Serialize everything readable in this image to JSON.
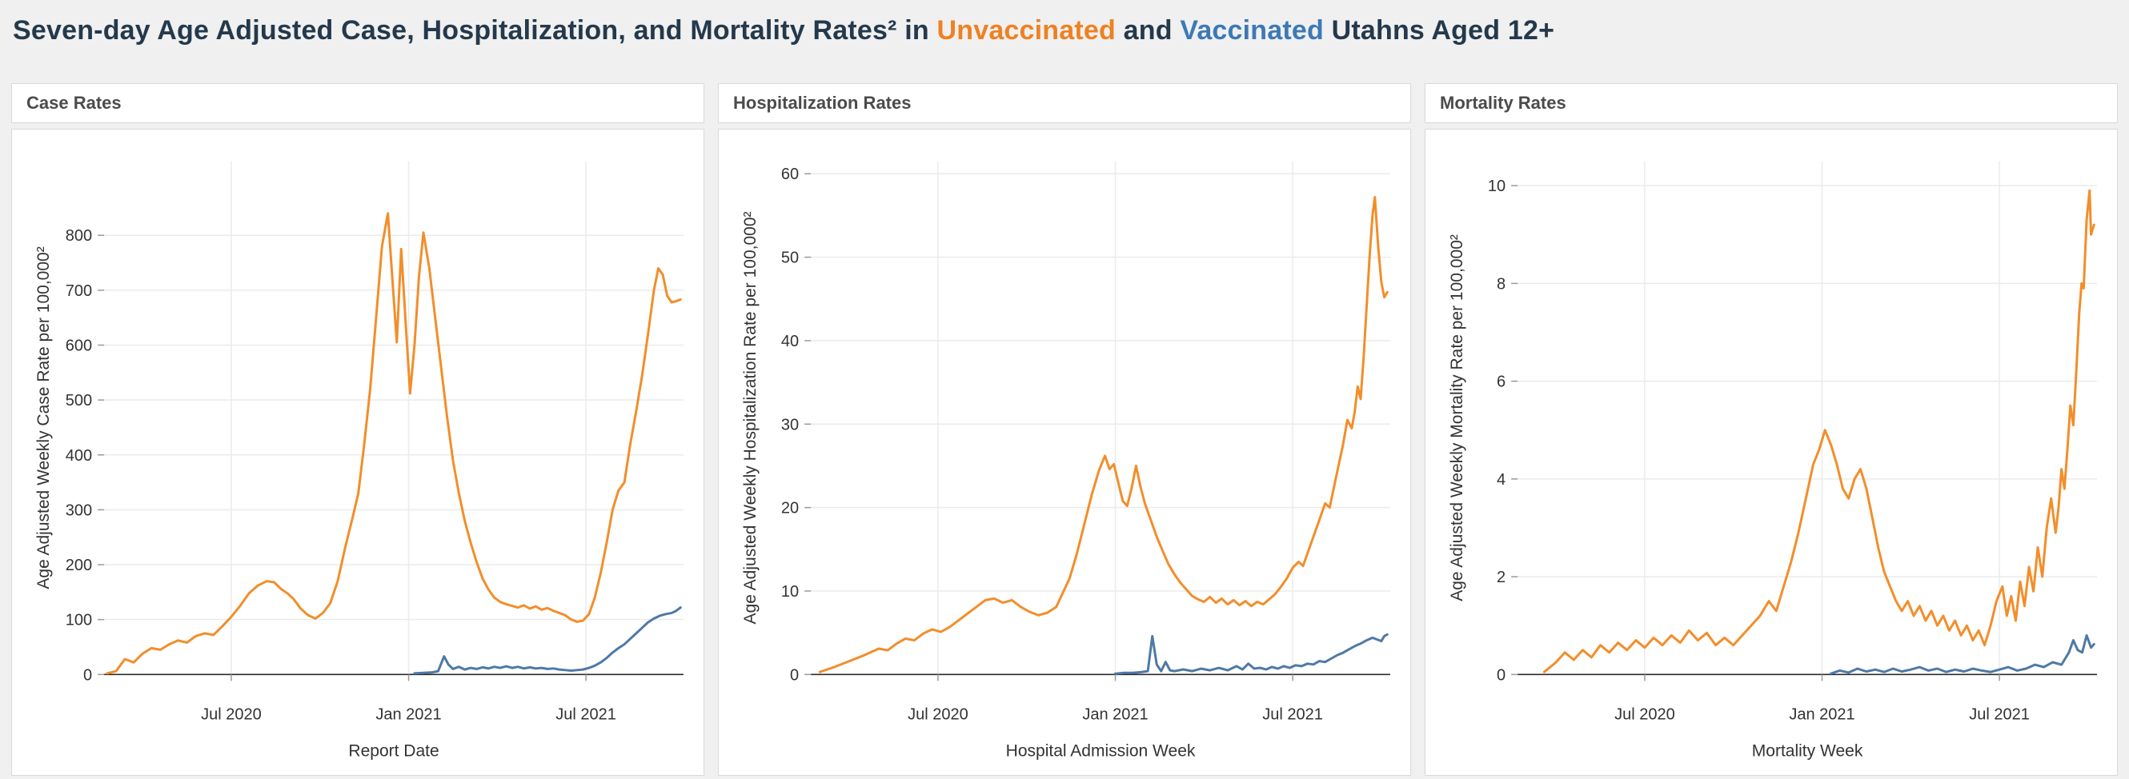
{
  "title": {
    "prefix": "Seven-day Age Adjusted Case, Hospitalization, and Mortality Rates² in ",
    "unvaccinated": "Unvaccinated",
    "and": " and ",
    "vaccinated": "Vaccinated",
    "suffix": " Utahns Aged 12+"
  },
  "colors": {
    "title_dark": "#24394b",
    "title_orange": "#ef8122",
    "title_blue": "#3c79b6",
    "unvaccinated": "#f28e2b",
    "vaccinated": "#4e79a7",
    "gridline": "#ebebeb",
    "axis_line": "#2b2b2b",
    "tick_mark": "#9a9a9a"
  },
  "chart_data": [
    {
      "type": "line",
      "panel_title": "Case Rates",
      "xlabel": "Report Date",
      "ylabel": "Age Adjusted Weekly Case Rate per 100,000²",
      "xlim": [
        1.7,
        21.3
      ],
      "ylim": [
        0,
        935
      ],
      "yticks": [
        0,
        100,
        200,
        300,
        400,
        500,
        600,
        700,
        800
      ],
      "xticks": [
        {
          "v": 6,
          "label": "Jul 2020"
        },
        {
          "v": 12,
          "label": "Jan 2021"
        },
        {
          "v": 18,
          "label": "Jul 2021"
        }
      ],
      "x_unit": "months since Jan 2020",
      "series": [
        {
          "name": "Unvaccinated",
          "color": "unvaccinated",
          "x": [
            1.8,
            2.1,
            2.4,
            2.7,
            3.0,
            3.3,
            3.6,
            3.9,
            4.2,
            4.5,
            4.8,
            5.1,
            5.4,
            5.7,
            6.0,
            6.3,
            6.6,
            6.9,
            7.2,
            7.45,
            7.7,
            7.9,
            8.1,
            8.35,
            8.6,
            8.85,
            9.1,
            9.35,
            9.6,
            9.85,
            10.1,
            10.3,
            10.5,
            10.7,
            10.9,
            11.1,
            11.3,
            11.45,
            11.6,
            11.75,
            11.9,
            12.05,
            12.2,
            12.35,
            12.5,
            12.7,
            12.9,
            13.1,
            13.3,
            13.5,
            13.7,
            13.9,
            14.1,
            14.3,
            14.5,
            14.7,
            14.9,
            15.1,
            15.3,
            15.5,
            15.7,
            15.9,
            16.1,
            16.3,
            16.5,
            16.7,
            16.9,
            17.1,
            17.3,
            17.5,
            17.7,
            17.9,
            18.1,
            18.3,
            18.5,
            18.7,
            18.9,
            19.1,
            19.3,
            19.5,
            19.7,
            19.9,
            20.1,
            20.3,
            20.45,
            20.6,
            20.75,
            20.9,
            21.05,
            21.2
          ],
          "y": [
            2,
            6,
            28,
            22,
            38,
            48,
            45,
            55,
            62,
            58,
            70,
            75,
            72,
            88,
            105,
            125,
            148,
            162,
            170,
            168,
            155,
            148,
            138,
            120,
            108,
            102,
            112,
            130,
            170,
            230,
            285,
            330,
            420,
            520,
            650,
            780,
            840,
            720,
            605,
            775,
            640,
            512,
            600,
            725,
            805,
            740,
            650,
            560,
            470,
            390,
            330,
            280,
            240,
            205,
            175,
            155,
            140,
            132,
            128,
            125,
            122,
            126,
            120,
            124,
            118,
            121,
            116,
            112,
            108,
            100,
            96,
            98,
            110,
            140,
            185,
            240,
            300,
            335,
            350,
            420,
            480,
            545,
            620,
            700,
            740,
            728,
            690,
            678,
            680,
            683
          ]
        },
        {
          "name": "Vaccinated",
          "color": "vaccinated",
          "x": [
            12.2,
            12.5,
            12.8,
            13.0,
            13.2,
            13.35,
            13.5,
            13.7,
            13.9,
            14.1,
            14.3,
            14.5,
            14.7,
            14.9,
            15.1,
            15.3,
            15.5,
            15.7,
            15.9,
            16.1,
            16.3,
            16.5,
            16.7,
            16.9,
            17.1,
            17.3,
            17.5,
            17.7,
            17.9,
            18.1,
            18.3,
            18.5,
            18.7,
            18.9,
            19.1,
            19.3,
            19.5,
            19.7,
            19.9,
            20.1,
            20.3,
            20.5,
            20.7,
            20.9,
            21.05,
            21.2
          ],
          "y": [
            2,
            3,
            4,
            6,
            33,
            18,
            10,
            14,
            9,
            12,
            10,
            13,
            11,
            14,
            12,
            15,
            12,
            14,
            11,
            13,
            11,
            12,
            10,
            11,
            9,
            8,
            7,
            8,
            9,
            12,
            16,
            22,
            30,
            40,
            48,
            55,
            65,
            75,
            85,
            95,
            102,
            107,
            110,
            112,
            116,
            122
          ]
        }
      ]
    },
    {
      "type": "line",
      "panel_title": "Hospitalization Rates",
      "xlabel": "Hospital Admission Week",
      "ylabel": "Age Adjusted Weekly Hospitalization Rate per 100,000²",
      "xlim": [
        1.7,
        21.3
      ],
      "ylim": [
        0,
        61.5
      ],
      "yticks": [
        0,
        10,
        20,
        30,
        40,
        50,
        60
      ],
      "xticks": [
        {
          "v": 6,
          "label": "Jul 2020"
        },
        {
          "v": 12,
          "label": "Jan 2021"
        },
        {
          "v": 18,
          "label": "Jul 2021"
        }
      ],
      "x_unit": "months since Jan 2020",
      "series": [
        {
          "name": "Unvaccinated",
          "color": "unvaccinated",
          "x": [
            2.0,
            2.5,
            3.0,
            3.5,
            4.0,
            4.3,
            4.6,
            4.9,
            5.2,
            5.5,
            5.8,
            6.1,
            6.4,
            6.7,
            7.0,
            7.3,
            7.6,
            7.9,
            8.2,
            8.5,
            8.8,
            9.1,
            9.4,
            9.7,
            10.0,
            10.2,
            10.45,
            10.7,
            10.95,
            11.2,
            11.45,
            11.65,
            11.8,
            11.95,
            12.1,
            12.25,
            12.4,
            12.55,
            12.7,
            12.85,
            13.0,
            13.2,
            13.4,
            13.6,
            13.8,
            14.0,
            14.2,
            14.4,
            14.6,
            14.8,
            15.0,
            15.2,
            15.4,
            15.6,
            15.8,
            16.0,
            16.2,
            16.4,
            16.6,
            16.8,
            17.0,
            17.2,
            17.4,
            17.6,
            17.8,
            18.0,
            18.2,
            18.35,
            18.5,
            18.7,
            18.9,
            19.1,
            19.25,
            19.4,
            19.55,
            19.7,
            19.85,
            20.0,
            20.1,
            20.2,
            20.3,
            20.4,
            20.5,
            20.6,
            20.7,
            20.78,
            20.9,
            21.0,
            21.1,
            21.2
          ],
          "y": [
            0.3,
            0.9,
            1.6,
            2.3,
            3.1,
            2.9,
            3.7,
            4.3,
            4.1,
            4.9,
            5.4,
            5.1,
            5.7,
            6.5,
            7.3,
            8.1,
            8.9,
            9.1,
            8.6,
            8.9,
            8.1,
            7.5,
            7.1,
            7.4,
            8.1,
            9.6,
            11.5,
            14.5,
            18.0,
            21.5,
            24.5,
            26.2,
            24.6,
            25.2,
            23.0,
            20.8,
            20.2,
            22.3,
            25.0,
            22.5,
            20.5,
            18.5,
            16.5,
            14.8,
            13.2,
            12.0,
            11.0,
            10.2,
            9.4,
            9.0,
            8.7,
            9.3,
            8.6,
            9.1,
            8.4,
            8.9,
            8.3,
            8.8,
            8.2,
            8.7,
            8.4,
            9.0,
            9.6,
            10.5,
            11.5,
            12.8,
            13.5,
            13.0,
            14.5,
            16.5,
            18.5,
            20.5,
            20.0,
            22.5,
            25.0,
            27.5,
            30.5,
            29.5,
            31.5,
            34.5,
            33.0,
            38.0,
            44.0,
            50.0,
            55.0,
            57.2,
            51.0,
            47.0,
            45.2,
            45.8
          ]
        },
        {
          "name": "Vaccinated",
          "color": "vaccinated",
          "x": [
            12.0,
            12.3,
            12.6,
            12.9,
            13.1,
            13.25,
            13.4,
            13.55,
            13.7,
            13.85,
            14.0,
            14.3,
            14.6,
            14.9,
            15.2,
            15.5,
            15.8,
            16.1,
            16.3,
            16.5,
            16.7,
            16.9,
            17.1,
            17.3,
            17.5,
            17.7,
            17.9,
            18.1,
            18.3,
            18.5,
            18.7,
            18.9,
            19.1,
            19.3,
            19.5,
            19.7,
            19.9,
            20.1,
            20.3,
            20.5,
            20.7,
            20.85,
            21.0,
            21.1,
            21.2
          ],
          "y": [
            0.1,
            0.2,
            0.2,
            0.3,
            0.4,
            4.6,
            1.2,
            0.4,
            1.5,
            0.5,
            0.4,
            0.6,
            0.4,
            0.7,
            0.5,
            0.8,
            0.5,
            1.0,
            0.6,
            1.3,
            0.7,
            0.8,
            0.6,
            0.9,
            0.7,
            1.0,
            0.8,
            1.1,
            1.0,
            1.3,
            1.2,
            1.6,
            1.5,
            1.9,
            2.3,
            2.6,
            3.0,
            3.4,
            3.7,
            4.1,
            4.4,
            4.2,
            4.0,
            4.6,
            4.8
          ]
        }
      ]
    },
    {
      "type": "line",
      "panel_title": "Mortality Rates",
      "xlabel": "Mortality Week",
      "ylabel": "Age Adjusted Weekly Mortality Rate per 100,000²",
      "xlim": [
        1.7,
        21.3
      ],
      "ylim": [
        0,
        10.5
      ],
      "yticks": [
        0,
        2,
        4,
        6,
        8,
        10
      ],
      "xticks": [
        {
          "v": 6,
          "label": "Jul 2020"
        },
        {
          "v": 12,
          "label": "Jan 2021"
        },
        {
          "v": 18,
          "label": "Jul 2021"
        }
      ],
      "x_unit": "months since Jan 2020",
      "series": [
        {
          "name": "Unvaccinated",
          "color": "unvaccinated",
          "x": [
            2.6,
            3.0,
            3.3,
            3.6,
            3.9,
            4.2,
            4.5,
            4.8,
            5.1,
            5.4,
            5.7,
            6.0,
            6.3,
            6.6,
            6.9,
            7.2,
            7.5,
            7.8,
            8.1,
            8.4,
            8.7,
            9.0,
            9.3,
            9.6,
            9.9,
            10.2,
            10.45,
            10.7,
            10.95,
            11.2,
            11.45,
            11.7,
            11.9,
            12.1,
            12.3,
            12.5,
            12.7,
            12.9,
            13.1,
            13.3,
            13.5,
            13.7,
            13.9,
            14.1,
            14.3,
            14.5,
            14.7,
            14.9,
            15.1,
            15.3,
            15.5,
            15.7,
            15.9,
            16.1,
            16.3,
            16.5,
            16.7,
            16.9,
            17.1,
            17.3,
            17.5,
            17.7,
            17.9,
            18.1,
            18.25,
            18.4,
            18.55,
            18.7,
            18.85,
            19.0,
            19.15,
            19.3,
            19.45,
            19.6,
            19.75,
            19.9,
            20.0,
            20.1,
            20.2,
            20.3,
            20.4,
            20.5,
            20.6,
            20.7,
            20.78,
            20.85,
            20.95,
            21.05,
            21.1,
            21.2
          ],
          "y": [
            0.05,
            0.25,
            0.45,
            0.3,
            0.5,
            0.35,
            0.6,
            0.45,
            0.65,
            0.5,
            0.7,
            0.55,
            0.75,
            0.6,
            0.8,
            0.65,
            0.9,
            0.7,
            0.85,
            0.6,
            0.75,
            0.6,
            0.8,
            1.0,
            1.2,
            1.5,
            1.3,
            1.8,
            2.3,
            2.9,
            3.6,
            4.3,
            4.6,
            5.0,
            4.7,
            4.3,
            3.8,
            3.6,
            4.0,
            4.2,
            3.8,
            3.2,
            2.6,
            2.1,
            1.8,
            1.5,
            1.3,
            1.5,
            1.2,
            1.4,
            1.1,
            1.3,
            1.0,
            1.2,
            0.9,
            1.1,
            0.8,
            1.0,
            0.7,
            0.9,
            0.6,
            1.0,
            1.5,
            1.8,
            1.2,
            1.6,
            1.1,
            1.9,
            1.4,
            2.2,
            1.7,
            2.6,
            2.0,
            3.0,
            3.6,
            2.9,
            3.4,
            4.2,
            3.8,
            4.6,
            5.5,
            5.1,
            6.2,
            7.4,
            8.0,
            7.9,
            9.3,
            9.9,
            9.0,
            9.2
          ]
        },
        {
          "name": "Vaccinated",
          "color": "vaccinated",
          "x": [
            12.3,
            12.6,
            12.9,
            13.2,
            13.5,
            13.8,
            14.1,
            14.4,
            14.7,
            15.0,
            15.3,
            15.6,
            15.9,
            16.2,
            16.5,
            16.8,
            17.1,
            17.4,
            17.7,
            18.0,
            18.3,
            18.6,
            18.9,
            19.2,
            19.5,
            19.8,
            20.1,
            20.35,
            20.5,
            20.65,
            20.8,
            20.95,
            21.1,
            21.2
          ],
          "y": [
            0.02,
            0.08,
            0.04,
            0.12,
            0.06,
            0.1,
            0.05,
            0.12,
            0.06,
            0.1,
            0.15,
            0.08,
            0.12,
            0.05,
            0.1,
            0.06,
            0.12,
            0.08,
            0.05,
            0.1,
            0.15,
            0.08,
            0.12,
            0.2,
            0.15,
            0.25,
            0.2,
            0.45,
            0.7,
            0.5,
            0.45,
            0.8,
            0.55,
            0.62
          ]
        }
      ]
    }
  ]
}
